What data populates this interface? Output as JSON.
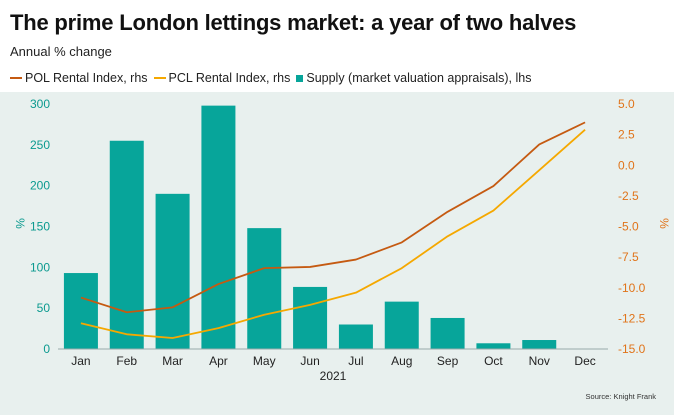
{
  "title": "The prime London lettings market: a year of two halves",
  "subtitle": "Annual % change",
  "source": "Source: Knight Frank",
  "colors": {
    "pol": "#c55a11",
    "pcl": "#f5a800",
    "supply": "#07a59a",
    "left_axis": "#0b9a8f",
    "right_axis": "#e0741a",
    "axis_text": "#222222",
    "background": "#e8f0ee"
  },
  "legend": [
    {
      "label": "POL Rental Index, rhs",
      "kind": "line",
      "color": "#c55a11"
    },
    {
      "label": "PCL Rental Index, rhs",
      "kind": "line",
      "color": "#f5a800"
    },
    {
      "label": "Supply (market valuation appraisals), lhs",
      "kind": "box",
      "color": "#07a59a"
    }
  ],
  "chart_data": {
    "type": "bar",
    "title": "The prime London lettings market: a year of two halves",
    "subtitle": "Annual % change",
    "categories": [
      "Jan",
      "Feb",
      "Mar",
      "Apr",
      "May",
      "Jun",
      "Jul",
      "Aug",
      "Sep",
      "Oct",
      "Nov",
      "Dec"
    ],
    "xlabel": "2021",
    "ylabel": "%",
    "ylabel_right": "%",
    "ylim": [
      0,
      300
    ],
    "ylim_right": [
      -15,
      5
    ],
    "yticks": [
      "0",
      "50",
      "100",
      "150",
      "200",
      "250",
      "300"
    ],
    "yticks_right": [
      "-15.0",
      "-12.5",
      "-10.0",
      "-7.5",
      "-5.0",
      "-2.5",
      "0.0",
      "2.5",
      "5.0"
    ],
    "grid": false,
    "legend_position": "top-left",
    "series": [
      {
        "name": "Supply (market valuation appraisals), lhs",
        "type": "bar",
        "axis": "left",
        "values": [
          93,
          255,
          190,
          298,
          148,
          76,
          30,
          58,
          38,
          7,
          11,
          null
        ]
      },
      {
        "name": "POL Rental Index, rhs",
        "type": "line",
        "axis": "right",
        "values": [
          -10.8,
          -12.0,
          -11.6,
          -9.7,
          -8.4,
          -8.3,
          -7.7,
          -6.3,
          -3.8,
          -1.7,
          1.7,
          3.5
        ]
      },
      {
        "name": "PCL Rental Index, rhs",
        "type": "line",
        "axis": "right",
        "values": [
          -12.9,
          -13.8,
          -14.1,
          -13.3,
          -12.2,
          -11.4,
          -10.4,
          -8.4,
          -5.8,
          -3.7,
          -0.4,
          2.9
        ]
      }
    ]
  }
}
